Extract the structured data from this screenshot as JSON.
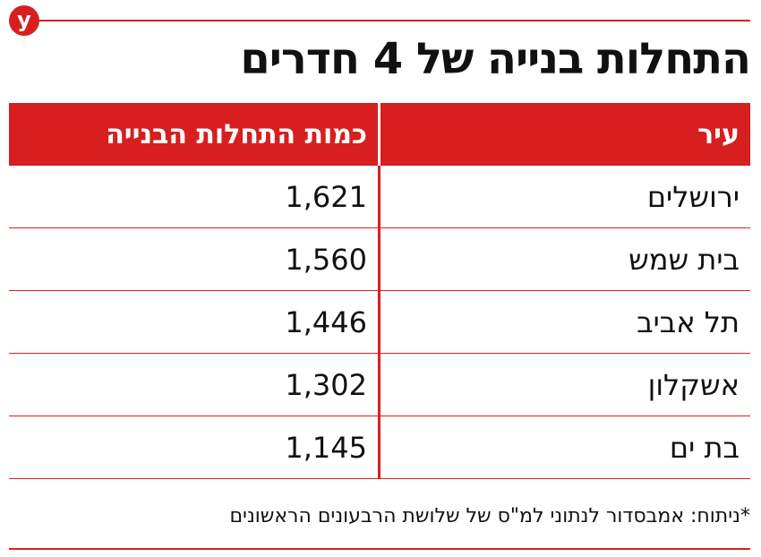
{
  "brand": {
    "logo_letter": "y",
    "accent_color": "#d71f1f"
  },
  "title": "התחלות בנייה של 4 חדרים",
  "table": {
    "headers": {
      "city": "עיר",
      "count": "כמות התחלות הבנייה"
    },
    "rows": [
      {
        "city": "ירושלים",
        "count": "1,621"
      },
      {
        "city": "בית שמש",
        "count": "1,560"
      },
      {
        "city": "תל אביב",
        "count": "1,446"
      },
      {
        "city": "אשקלון",
        "count": "1,302"
      },
      {
        "city": "בת ים",
        "count": "1,145"
      }
    ]
  },
  "footnote": "*ניתוח: אמבסדור לנתוני למ\"ס של שלושת הרבעונים הראשונים"
}
